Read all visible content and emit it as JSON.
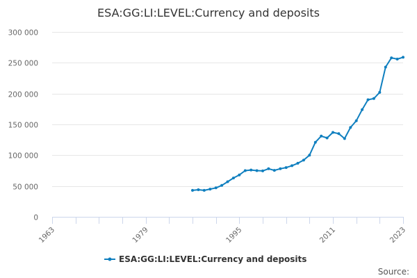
{
  "chart_data": {
    "type": "line",
    "title": "ESA:GG:LI:LEVEL:Currency and deposits",
    "xlabel": "",
    "ylabel": "",
    "xlim": [
      1963,
      2023
    ],
    "ylim": [
      0,
      300000
    ],
    "x_ticks": [
      "1963",
      "1979",
      "1995",
      "2011",
      "2023"
    ],
    "y_ticks": [
      "0",
      "50 000",
      "100 000",
      "150 000",
      "200 000",
      "250 000",
      "300 000"
    ],
    "grid": true,
    "legend_position": "bottom",
    "series": [
      {
        "name": "ESA:GG:LI:LEVEL:Currency and deposits",
        "color": "#0f7fbf",
        "x": [
          1987,
          1988,
          1989,
          1990,
          1991,
          1992,
          1993,
          1994,
          1995,
          1996,
          1997,
          1998,
          1999,
          2000,
          2001,
          2002,
          2003,
          2004,
          2005,
          2006,
          2007,
          2008,
          2009,
          2010,
          2011,
          2012,
          2013,
          2014,
          2015,
          2016,
          2017,
          2018,
          2019,
          2020,
          2021,
          2022,
          2023
        ],
        "y": [
          43000,
          44000,
          43000,
          45000,
          47000,
          51000,
          57000,
          63000,
          68000,
          75000,
          76000,
          75000,
          74500,
          78000,
          75500,
          78000,
          80000,
          83000,
          87000,
          92000,
          100000,
          121000,
          131000,
          128000,
          137000,
          135000,
          127000,
          145000,
          156000,
          174000,
          190000,
          192000,
          202000,
          243000,
          258000,
          256000,
          259000
        ]
      }
    ]
  },
  "credits": "Source:"
}
